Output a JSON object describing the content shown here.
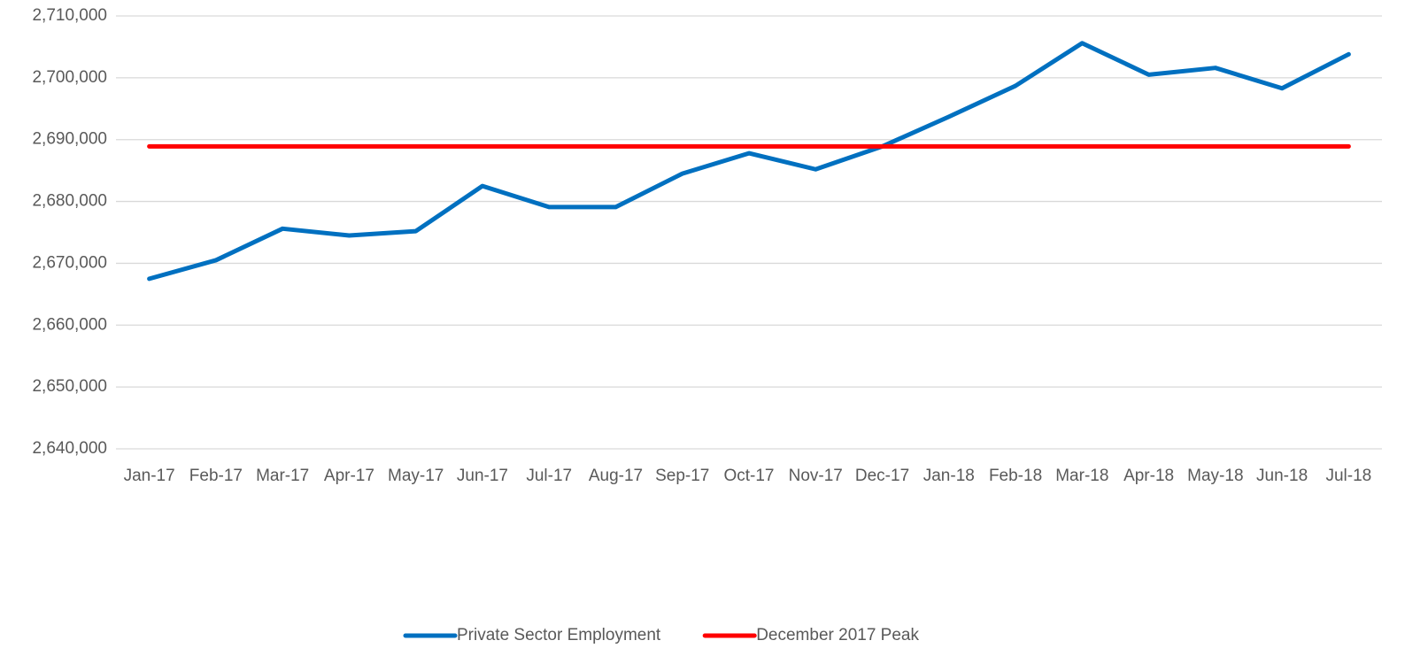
{
  "chart_data": {
    "type": "line",
    "categories": [
      "Jan-17",
      "Feb-17",
      "Mar-17",
      "Apr-17",
      "May-17",
      "Jun-17",
      "Jul-17",
      "Aug-17",
      "Sep-17",
      "Oct-17",
      "Nov-17",
      "Dec-17",
      "Jan-18",
      "Feb-18",
      "Mar-18",
      "Apr-18",
      "May-18",
      "Jun-18",
      "Jul-18"
    ],
    "series": [
      {
        "name": "Private Sector Employment",
        "color": "#0070c0",
        "values": [
          2667500,
          2670500,
          2675600,
          2674500,
          2675200,
          2682500,
          2679100,
          2679100,
          2684500,
          2687800,
          2685200,
          2688900,
          2693700,
          2698700,
          2705600,
          2700500,
          2701600,
          2698300,
          2703800
        ]
      },
      {
        "name": "December 2017 Peak",
        "color": "#ff0000",
        "values": [
          2688900,
          2688900,
          2688900,
          2688900,
          2688900,
          2688900,
          2688900,
          2688900,
          2688900,
          2688900,
          2688900,
          2688900,
          2688900,
          2688900,
          2688900,
          2688900,
          2688900,
          2688900,
          2688900
        ]
      }
    ],
    "ylim": [
      2640000,
      2710000
    ],
    "yticks": [
      {
        "value": 2640000,
        "label": "2,640,000"
      },
      {
        "value": 2650000,
        "label": "2,650,000"
      },
      {
        "value": 2660000,
        "label": "2,660,000"
      },
      {
        "value": 2670000,
        "label": "2,670,000"
      },
      {
        "value": 2680000,
        "label": "2,680,000"
      },
      {
        "value": 2690000,
        "label": "2,690,000"
      },
      {
        "value": 2700000,
        "label": "2,700,000"
      },
      {
        "value": 2710000,
        "label": "2,710,000"
      }
    ],
    "grid": true,
    "legend": "bottom"
  }
}
